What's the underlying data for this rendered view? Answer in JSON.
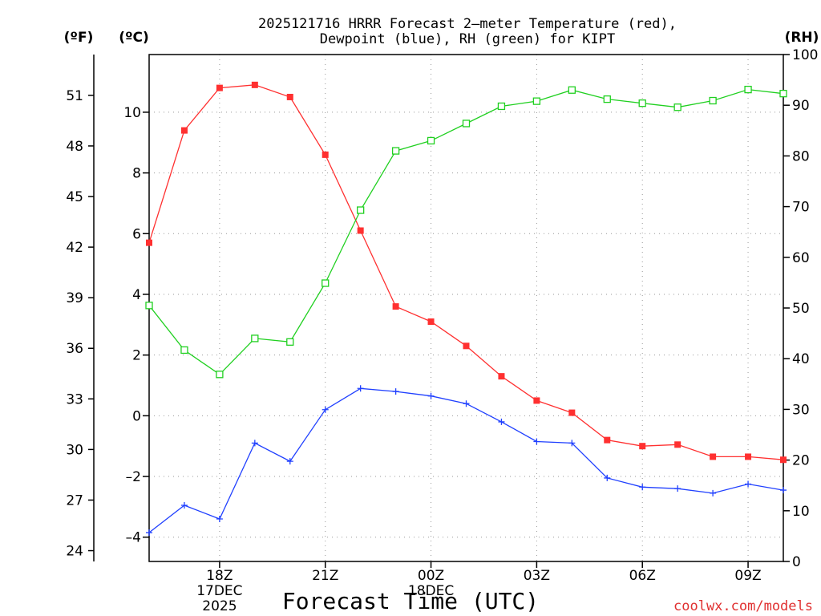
{
  "chart_data": {
    "type": "line",
    "title_line1": "2025121716 HRRR Forecast 2—meter Temperature (red),",
    "title_line2": "Dewpoint (blue), RH (green) for KIPT",
    "xlabel": "Forecast Time (UTC)",
    "credit": "coolwx.com/models",
    "units": {
      "fahrenheit": "(ºF)",
      "celsius": "(ºC)",
      "rh": "(RH)"
    },
    "x": [
      16,
      17,
      18,
      19,
      20,
      21,
      22,
      23,
      24,
      25,
      26,
      27,
      28,
      29,
      30,
      31,
      32,
      33,
      34
    ],
    "xlim": [
      16,
      34
    ],
    "x_ticks": [
      {
        "x": 18,
        "label": "18Z",
        "date": "17DEC",
        "year": "2025"
      },
      {
        "x": 21,
        "label": "21Z"
      },
      {
        "x": 24,
        "label": "00Z",
        "date": "18DEC"
      },
      {
        "x": 27,
        "label": "03Z"
      },
      {
        "x": 30,
        "label": "06Z"
      },
      {
        "x": 33,
        "label": "09Z"
      }
    ],
    "celsius_axis": {
      "ylim": [
        -4.8,
        11.9
      ],
      "ticks": [
        -4,
        -2,
        0,
        2,
        4,
        6,
        8,
        10
      ],
      "tick_labels": [
        "–4",
        "–2",
        "0",
        "2",
        "4",
        "6",
        "8",
        "10"
      ]
    },
    "fahrenheit_ticks": [
      {
        "value": 24,
        "label": "24"
      },
      {
        "value": 27,
        "label": "27"
      },
      {
        "value": 30,
        "label": "30"
      },
      {
        "value": 33,
        "label": "33"
      },
      {
        "value": 36,
        "label": "36"
      },
      {
        "value": 39,
        "label": "39"
      },
      {
        "value": 42,
        "label": "42"
      },
      {
        "value": 45,
        "label": "45"
      },
      {
        "value": 48,
        "label": "48"
      },
      {
        "value": 51,
        "label": "51"
      }
    ],
    "rh_axis": {
      "ylim": [
        0,
        100
      ],
      "ticks": [
        0,
        10,
        20,
        30,
        40,
        50,
        60,
        70,
        80,
        90,
        100
      ]
    },
    "series": [
      {
        "name": "Temperature",
        "axis": "celsius",
        "color": "#ff3030",
        "marker": "filled-square",
        "values": [
          5.7,
          9.4,
          10.8,
          10.9,
          10.5,
          8.6,
          6.1,
          3.6,
          3.1,
          2.3,
          1.3,
          0.5,
          0.1,
          -0.8,
          -1.0,
          -0.95,
          -1.35,
          -1.35,
          -1.45
        ]
      },
      {
        "name": "Dewpoint",
        "axis": "celsius",
        "color": "#2040ff",
        "marker": "plus",
        "values": [
          -3.85,
          -2.95,
          -3.4,
          -0.9,
          -1.5,
          0.2,
          0.9,
          0.8,
          0.65,
          0.4,
          -0.2,
          -0.85,
          -0.9,
          -2.05,
          -2.35,
          -2.4,
          -2.55,
          -2.25,
          -2.45
        ]
      },
      {
        "name": "RH",
        "axis": "rh",
        "color": "#20d020",
        "marker": "open-square",
        "values": [
          50.5,
          41.7,
          36.9,
          44.0,
          43.3,
          54.9,
          69.3,
          81.0,
          83.0,
          86.4,
          89.8,
          90.8,
          93.0,
          91.2,
          90.4,
          89.6,
          90.9,
          93.1,
          92.3
        ]
      }
    ]
  }
}
